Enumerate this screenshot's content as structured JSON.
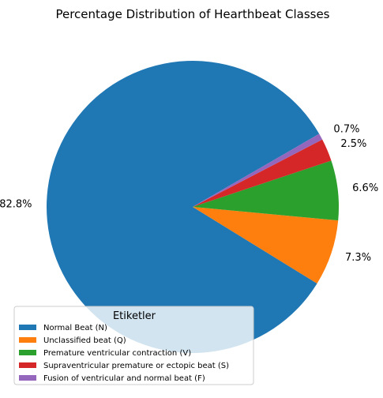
{
  "chart_data": {
    "type": "pie",
    "title": "Percentage Distribution of Hearthbeat Classes",
    "legend_title": "Etiketler",
    "legend_position": "lower-left",
    "start_angle_deg": 30,
    "slices": [
      {
        "label": "Normal Beat (N)",
        "value": 82.8,
        "pct_label": "82.8%",
        "color": "#1f77b4"
      },
      {
        "label": "Unclassified beat (Q)",
        "value": 7.3,
        "pct_label": "7.3%",
        "color": "#ff7f0e"
      },
      {
        "label": "Premature ventricular contraction (V)",
        "value": 6.6,
        "pct_label": "6.6%",
        "color": "#2ca02c"
      },
      {
        "label": "Supraventricular premature or ectopic beat (S)",
        "value": 2.5,
        "pct_label": "2.5%",
        "color": "#d62728"
      },
      {
        "label": "Fusion of ventricular and normal beat (F)",
        "value": 0.7,
        "pct_label": "0.7%",
        "color": "#9467bd"
      }
    ]
  }
}
